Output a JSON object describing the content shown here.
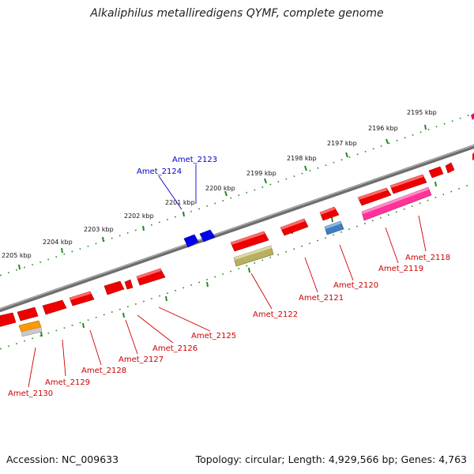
{
  "title": "Alkaliphilus metalliredigens QYMF, complete genome",
  "footer": {
    "accession": "Accession: NC_009633",
    "summary": "Topology: circular; Length: 4,929,566 bp; Genes: 4,763"
  },
  "scale_labels": [
    "2195 kbp",
    "2196 kbp",
    "2197 kbp",
    "2198 kbp",
    "2199 kbp",
    "2200 kbp",
    "2201 kbp",
    "2202 kbp",
    "2203 kbp",
    "2204 kbp",
    "2205 kbp"
  ],
  "genes": [
    {
      "name": "Amet_2118",
      "color": "#cc0000"
    },
    {
      "name": "Amet_2119",
      "color": "#cc0000"
    },
    {
      "name": "Amet_2120",
      "color": "#cc0000"
    },
    {
      "name": "Amet_2121",
      "color": "#cc0000"
    },
    {
      "name": "Amet_2122",
      "color": "#cc0000"
    },
    {
      "name": "Amet_2123",
      "color": "#0000cc"
    },
    {
      "name": "Amet_2124",
      "color": "#0000cc"
    },
    {
      "name": "Amet_2125",
      "color": "#cc0000"
    },
    {
      "name": "Amet_2126",
      "color": "#cc0000"
    },
    {
      "name": "Amet_2127",
      "color": "#cc0000"
    },
    {
      "name": "Amet_2128",
      "color": "#cc0000"
    },
    {
      "name": "Amet_2129",
      "color": "#cc0000"
    },
    {
      "name": "Amet_2130",
      "color": "#cc0000"
    }
  ],
  "colors": {
    "backbone": "#808080",
    "forward_gene": "#ff0000",
    "reverse_gene": "#ff0000",
    "blue_gene": "#0000ff",
    "magenta_feature": "#ff3399",
    "olive_feature": "#b8b060",
    "steelblue_feature": "#4a86c0",
    "orange_feature": "#ff9900",
    "scale_ticks": "#228b22"
  }
}
